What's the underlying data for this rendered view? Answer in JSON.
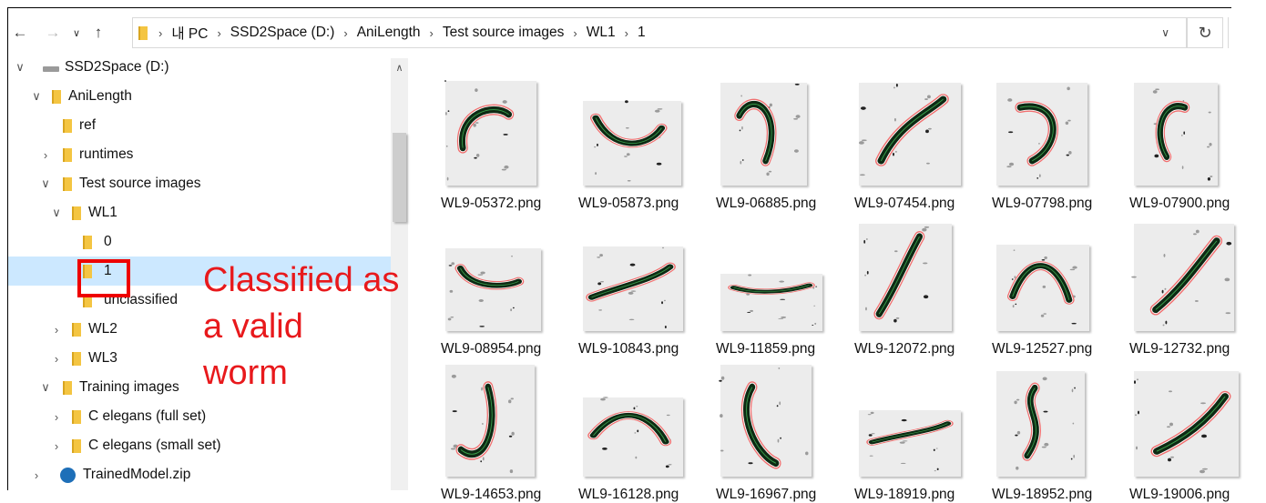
{
  "nav": {
    "back_icon": "arrow-left-icon",
    "forward_icon": "arrow-right-icon",
    "recent_icon": "chevron-down-icon",
    "up_icon": "arrow-up-icon",
    "breadcrumbs": [
      "내 PC",
      "SSD2Space (D:)",
      "AniLength",
      "Test source images",
      "WL1",
      "1"
    ],
    "refresh_icon": "refresh-icon"
  },
  "tree": {
    "items": [
      {
        "label": "SSD2Space (D:)",
        "level": 0,
        "expander": "expanded",
        "icon": "drive-icon",
        "selected": false
      },
      {
        "label": "AniLength",
        "level": 1,
        "expander": "expanded",
        "icon": "folder-icon",
        "selected": false
      },
      {
        "label": "ref",
        "level": 2,
        "expander": "none",
        "icon": "folder-icon",
        "selected": false
      },
      {
        "label": "runtimes",
        "level": 2,
        "expander": "collapsed",
        "icon": "folder-icon",
        "selected": false
      },
      {
        "label": "Test source images",
        "level": 2,
        "expander": "expanded",
        "icon": "folder-icon",
        "selected": false
      },
      {
        "label": "WL1",
        "level": 3,
        "expander": "expanded",
        "icon": "folder-icon",
        "selected": false
      },
      {
        "label": "0",
        "level": 4,
        "expander": "none",
        "icon": "folder-icon",
        "selected": false
      },
      {
        "label": "1",
        "level": 4,
        "expander": "none",
        "icon": "folder-icon",
        "selected": true
      },
      {
        "label": "unclassified",
        "level": 4,
        "expander": "none",
        "icon": "folder-icon",
        "selected": false
      },
      {
        "label": "WL2",
        "level": 3,
        "expander": "collapsed",
        "icon": "folder-icon",
        "selected": false
      },
      {
        "label": "WL3",
        "level": 3,
        "expander": "collapsed",
        "icon": "folder-icon",
        "selected": false
      },
      {
        "label": "Training images",
        "level": 2,
        "expander": "expanded",
        "icon": "folder-icon",
        "selected": false
      },
      {
        "label": "C elegans (full set)",
        "level": 3,
        "expander": "collapsed",
        "icon": "folder-icon",
        "selected": false
      },
      {
        "label": "C elegans (small set)",
        "level": 3,
        "expander": "collapsed",
        "icon": "folder-icon",
        "selected": false
      },
      {
        "label": "TrainedModel.zip",
        "level": 1,
        "expander": "collapsed",
        "icon": "zip-icon",
        "selected": false
      }
    ]
  },
  "annotation": {
    "lines": [
      "Classified as",
      "a valid",
      "worm"
    ],
    "color": "#e8191c"
  },
  "files": [
    "WL9-05372.png",
    "WL9-05873.png",
    "WL9-06885.png",
    "WL9-07454.png",
    "WL9-07798.png",
    "WL9-07900.png",
    "WL9-08954.png",
    "WL9-10843.png",
    "WL9-11859.png",
    "WL9-12072.png",
    "WL9-12527.png",
    "WL9-12732.png",
    "WL9-14653.png",
    "WL9-16128.png",
    "WL9-16967.png",
    "WL9-18919.png",
    "WL9-18952.png",
    "WL9-19006.png"
  ],
  "colors": {
    "selection": "#cce8ff",
    "worm_outline": "#f07070",
    "worm_body": "#0e2a14"
  }
}
